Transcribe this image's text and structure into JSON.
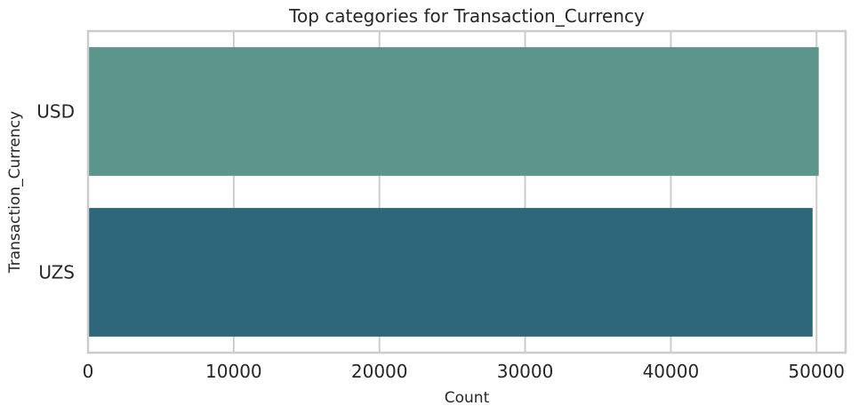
{
  "chart_data": {
    "type": "bar",
    "orientation": "horizontal",
    "title": "Top categories for Transaction_Currency",
    "xlabel": "Count",
    "ylabel": "Transaction_Currency",
    "categories": [
      "USD",
      "UZS"
    ],
    "values": [
      50150,
      49730
    ],
    "xlim": [
      0,
      52000
    ],
    "xticks": [
      0,
      10000,
      20000,
      30000,
      40000,
      50000
    ],
    "grid": true,
    "colors": [
      "#5b958b",
      "#2e677c"
    ]
  }
}
